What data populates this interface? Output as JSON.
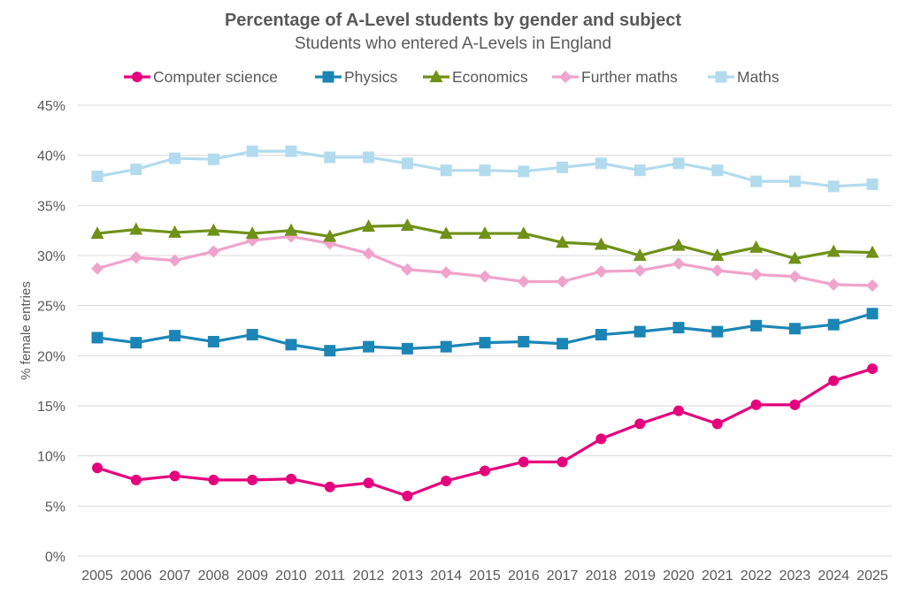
{
  "chart_data": {
    "type": "line",
    "title": "Percentage of A-Level students by gender and subject",
    "subtitle": "Students who entered A-Levels in England",
    "xlabel": "",
    "ylabel": "% female entries",
    "ylim": [
      0,
      45
    ],
    "yticks": [
      "0%",
      "5%",
      "10%",
      "15%",
      "20%",
      "25%",
      "30%",
      "35%",
      "40%",
      "45%"
    ],
    "grid": true,
    "legend_position": "top",
    "categories": [
      "2005",
      "2006",
      "2007",
      "2008",
      "2009",
      "2010",
      "2011",
      "2012",
      "2013",
      "2014",
      "2015",
      "2016",
      "2017",
      "2018",
      "2019",
      "2020",
      "2021",
      "2022",
      "2023",
      "2024",
      "2025"
    ],
    "series": [
      {
        "name": "Computer science",
        "color": "#e5007d",
        "marker": "circle",
        "values": [
          8.8,
          7.6,
          8.0,
          7.6,
          7.6,
          7.7,
          6.9,
          7.3,
          6.0,
          7.5,
          8.5,
          9.4,
          9.4,
          11.7,
          13.2,
          14.5,
          13.2,
          15.1,
          15.1,
          17.5,
          18.7
        ]
      },
      {
        "name": "Physics",
        "color": "#1b86b6",
        "marker": "square",
        "values": [
          21.8,
          21.3,
          22.0,
          21.4,
          22.1,
          21.1,
          20.5,
          20.9,
          20.7,
          20.9,
          21.3,
          21.4,
          21.2,
          22.1,
          22.4,
          22.8,
          22.4,
          23.0,
          22.7,
          23.1,
          24.2
        ]
      },
      {
        "name": "Economics",
        "color": "#6f9118",
        "marker": "triangle",
        "values": [
          32.2,
          32.6,
          32.3,
          32.5,
          32.2,
          32.5,
          31.9,
          32.9,
          33.0,
          32.2,
          32.2,
          32.2,
          31.3,
          31.1,
          30.0,
          31.0,
          30.0,
          30.8,
          29.7,
          30.4,
          30.3
        ]
      },
      {
        "name": "Further maths",
        "color": "#f0a3cb",
        "marker": "diamond",
        "values": [
          28.7,
          29.8,
          29.5,
          30.4,
          31.5,
          31.9,
          31.2,
          30.2,
          28.6,
          28.3,
          27.9,
          27.4,
          27.4,
          28.4,
          28.5,
          29.2,
          28.5,
          28.1,
          27.9,
          27.1,
          27.0
        ]
      },
      {
        "name": "Maths",
        "color": "#b2dbee",
        "marker": "square",
        "values": [
          37.9,
          38.6,
          39.7,
          39.6,
          40.4,
          40.4,
          39.8,
          39.8,
          39.2,
          38.5,
          38.5,
          38.4,
          38.8,
          39.2,
          38.5,
          39.2,
          38.5,
          37.4,
          37.4,
          36.9,
          37.1
        ]
      }
    ]
  }
}
